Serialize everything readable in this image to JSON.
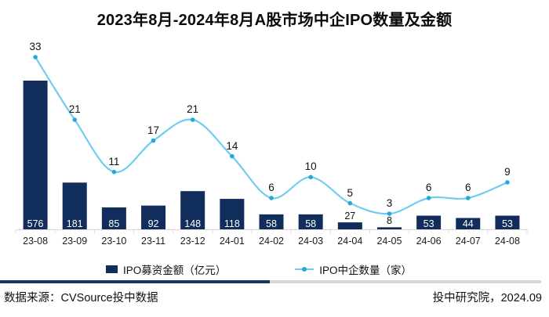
{
  "title": "2023年8月-2024年8月A股市场中企IPO数量及金额",
  "chart_data": {
    "type": "combo-bar-line",
    "categories": [
      "23-08",
      "23-09",
      "23-10",
      "23-11",
      "23-12",
      "24-01",
      "24-02",
      "24-03",
      "24-04",
      "24-05",
      "24-06",
      "24-07",
      "24-08"
    ],
    "series": [
      {
        "name": "IPO募资金额（亿元）",
        "type": "bar",
        "values": [
          576,
          181,
          85,
          92,
          148,
          118,
          58,
          58,
          27,
          8,
          53,
          44,
          53
        ],
        "color": "#112d5c"
      },
      {
        "name": "IPO中企数量（家）",
        "type": "line",
        "values": [
          33,
          21,
          11,
          17,
          21,
          14,
          6,
          10,
          5,
          3,
          6,
          6,
          9
        ],
        "color": "#6fcdf2",
        "marker_color": "#29a7dd"
      }
    ],
    "title": "2023年8月-2024年8月A股市场中企IPO数量及金额",
    "data_labels": true,
    "legend_position": "bottom",
    "grid": false,
    "axis_color": "#d9d9d9"
  },
  "legend": {
    "bar_label": "IPO募资金额（亿元）",
    "line_label": "IPO中企数量（家）"
  },
  "footer": {
    "source": "数据来源：CVSource投中数据",
    "credit": "投中研究院，2024.09"
  },
  "colors": {
    "bar": "#112d5c",
    "line": "#6fcdf2",
    "marker": "#29a7dd",
    "divider_navy": "#1c3560",
    "divider_gray": "#d8d8d8"
  }
}
